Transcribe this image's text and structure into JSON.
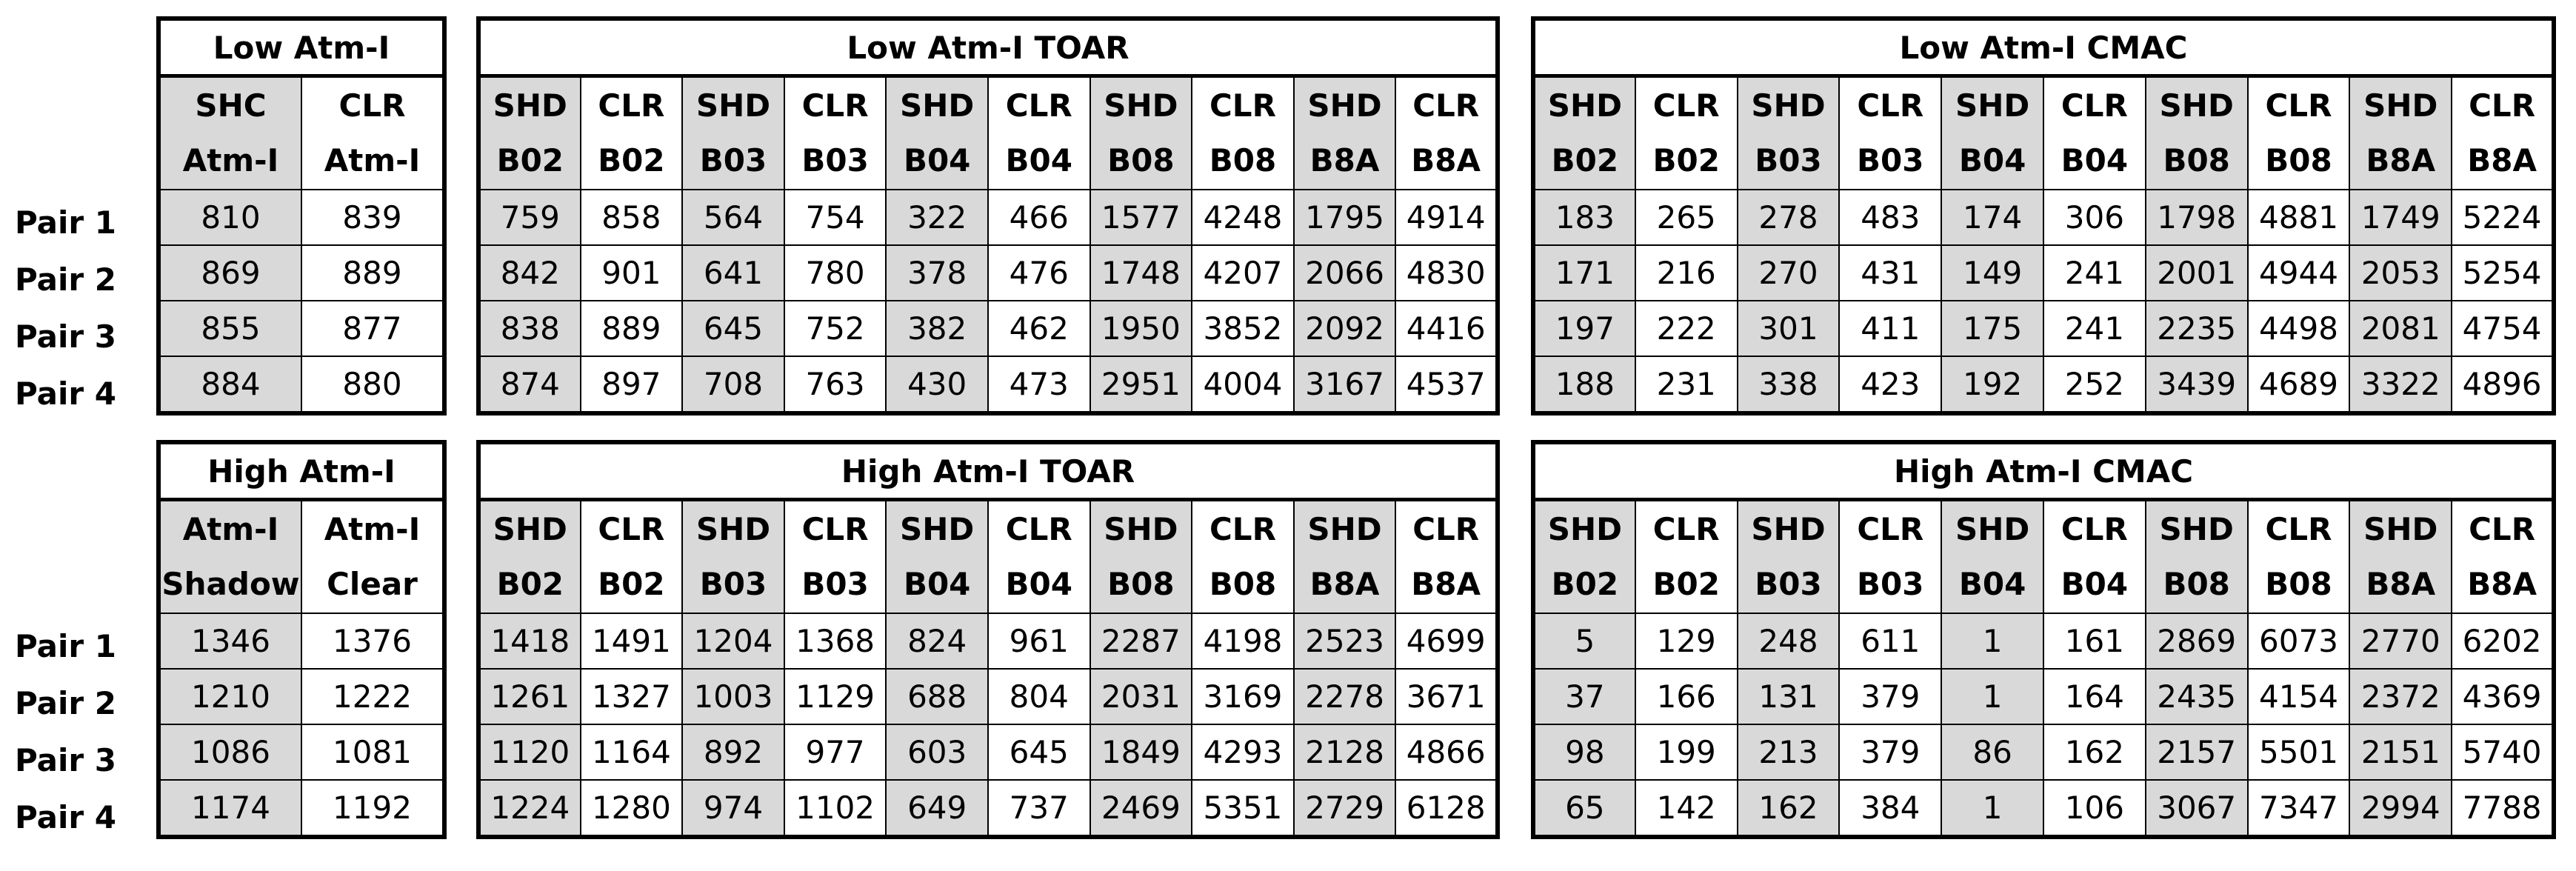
{
  "sections": [
    {
      "rows": [
        "Pair 1",
        "Pair 2",
        "Pair 3",
        "Pair 4"
      ],
      "tables": [
        {
          "title": "Low Atm-I",
          "headers": [
            [
              "SHC",
              "Atm-I"
            ],
            [
              "CLR",
              "Atm-I"
            ]
          ],
          "rows": [
            [
              810,
              839
            ],
            [
              869,
              889
            ],
            [
              855,
              877
            ],
            [
              884,
              880
            ]
          ]
        },
        {
          "title": "Low Atm-I TOAR",
          "headers": [
            [
              "SHD",
              "B02"
            ],
            [
              "CLR",
              "B02"
            ],
            [
              "SHD",
              "B03"
            ],
            [
              "CLR",
              "B03"
            ],
            [
              "SHD",
              "B04"
            ],
            [
              "CLR",
              "B04"
            ],
            [
              "SHD",
              "B08"
            ],
            [
              "CLR",
              "B08"
            ],
            [
              "SHD",
              "B8A"
            ],
            [
              "CLR",
              "B8A"
            ]
          ],
          "rows": [
            [
              759,
              858,
              564,
              754,
              322,
              466,
              1577,
              4248,
              1795,
              4914
            ],
            [
              842,
              901,
              641,
              780,
              378,
              476,
              1748,
              4207,
              2066,
              4830
            ],
            [
              838,
              889,
              645,
              752,
              382,
              462,
              1950,
              3852,
              2092,
              4416
            ],
            [
              874,
              897,
              708,
              763,
              430,
              473,
              2951,
              4004,
              3167,
              4537
            ]
          ]
        },
        {
          "title": "Low Atm-I CMAC",
          "headers": [
            [
              "SHD",
              "B02"
            ],
            [
              "CLR",
              "B02"
            ],
            [
              "SHD",
              "B03"
            ],
            [
              "CLR",
              "B03"
            ],
            [
              "SHD",
              "B04"
            ],
            [
              "CLR",
              "B04"
            ],
            [
              "SHD",
              "B08"
            ],
            [
              "CLR",
              "B08"
            ],
            [
              "SHD",
              "B8A"
            ],
            [
              "CLR",
              "B8A"
            ]
          ],
          "rows": [
            [
              183,
              265,
              278,
              483,
              174,
              306,
              1798,
              4881,
              1749,
              5224
            ],
            [
              171,
              216,
              270,
              431,
              149,
              241,
              2001,
              4944,
              2053,
              5254
            ],
            [
              197,
              222,
              301,
              411,
              175,
              241,
              2235,
              4498,
              2081,
              4754
            ],
            [
              188,
              231,
              338,
              423,
              192,
              252,
              3439,
              4689,
              3322,
              4896
            ]
          ]
        }
      ]
    },
    {
      "rows": [
        "Pair 1",
        "Pair 2",
        "Pair 3",
        "Pair 4"
      ],
      "tables": [
        {
          "title": "High Atm-I",
          "headers": [
            [
              "Atm-I",
              "Shadow"
            ],
            [
              "Atm-I",
              "Clear"
            ]
          ],
          "rows": [
            [
              1346,
              1376
            ],
            [
              1210,
              1222
            ],
            [
              1086,
              1081
            ],
            [
              1174,
              1192
            ]
          ]
        },
        {
          "title": "High Atm-I TOAR",
          "headers": [
            [
              "SHD",
              "B02"
            ],
            [
              "CLR",
              "B02"
            ],
            [
              "SHD",
              "B03"
            ],
            [
              "CLR",
              "B03"
            ],
            [
              "SHD",
              "B04"
            ],
            [
              "CLR",
              "B04"
            ],
            [
              "SHD",
              "B08"
            ],
            [
              "CLR",
              "B08"
            ],
            [
              "SHD",
              "B8A"
            ],
            [
              "CLR",
              "B8A"
            ]
          ],
          "rows": [
            [
              1418,
              1491,
              1204,
              1368,
              824,
              961,
              2287,
              4198,
              2523,
              4699
            ],
            [
              1261,
              1327,
              1003,
              1129,
              688,
              804,
              2031,
              3169,
              2278,
              3671
            ],
            [
              1120,
              1164,
              892,
              977,
              603,
              645,
              1849,
              4293,
              2128,
              4866
            ],
            [
              1224,
              1280,
              974,
              1102,
              649,
              737,
              2469,
              5351,
              2729,
              6128
            ]
          ]
        },
        {
          "title": "High Atm-I CMAC",
          "headers": [
            [
              "SHD",
              "B02"
            ],
            [
              "CLR",
              "B02"
            ],
            [
              "SHD",
              "B03"
            ],
            [
              "CLR",
              "B03"
            ],
            [
              "SHD",
              "B04"
            ],
            [
              "CLR",
              "B04"
            ],
            [
              "SHD",
              "B08"
            ],
            [
              "CLR",
              "B08"
            ],
            [
              "SHD",
              "B8A"
            ],
            [
              "CLR",
              "B8A"
            ]
          ],
          "rows": [
            [
              5,
              129,
              248,
              611,
              1,
              161,
              2869,
              6073,
              2770,
              6202
            ],
            [
              37,
              166,
              131,
              379,
              1,
              164,
              2435,
              4154,
              2372,
              4369
            ],
            [
              98,
              199,
              213,
              379,
              86,
              162,
              2157,
              5501,
              2151,
              5740
            ],
            [
              65,
              142,
              162,
              384,
              1,
              106,
              3067,
              7347,
              2994,
              7788
            ]
          ]
        }
      ]
    }
  ]
}
